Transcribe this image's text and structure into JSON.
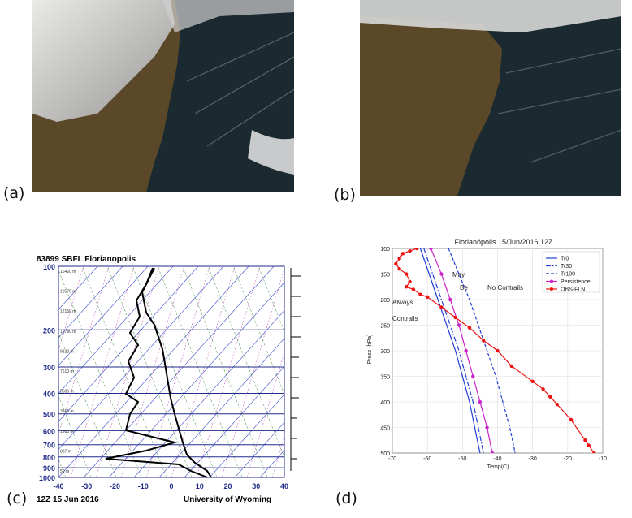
{
  "panel_labels": {
    "a": "(a)",
    "b": "(b)",
    "c": "(c)",
    "d": "(d)"
  },
  "colors": {
    "ocean": "#1d2c33",
    "land": "#5e4a2a",
    "cloud": "#dcdcdc",
    "skewt_isobar": "#1f2a8a",
    "skewt_isotherm": "#3548c8",
    "trh0": "#1f3fd6",
    "tr30": "#1f3fd6",
    "tr100": "#1f3fd6",
    "persistence": "#cc22cc",
    "obs": "#ee1111"
  },
  "sounding": {
    "title": "83899 SBFL Florianopolis",
    "date": "12Z 15 Jun 2016",
    "credit": "University of Wyoming",
    "pressure_labels": [
      "100",
      "200",
      "300",
      "400",
      "500",
      "600",
      "700",
      "800",
      "900",
      "1000"
    ],
    "temp_ticks": [
      "-40",
      "-30",
      "-20",
      "-10",
      "0",
      "10",
      "20",
      "30",
      "40"
    ],
    "height_labels": [
      "16420 m",
      "13570 m",
      "12150 m",
      "10780 m",
      "9130 m",
      "7510 m",
      "5606 m",
      "3165 m",
      "1980 m",
      "837 m",
      "50 m"
    ]
  },
  "chart_data": {
    "type": "line",
    "title": "Florianópolis 15/Jun/2016 12Z",
    "xlabel": "Temp(C)",
    "ylabel": "Press (hPa)",
    "xlim": [
      -70,
      -10
    ],
    "ylim": [
      500,
      100
    ],
    "x_ticks": [
      "-70",
      "-60",
      "-50",
      "-40",
      "-30",
      "-20",
      "-10"
    ],
    "y_ticks": [
      "100",
      "150",
      "200",
      "250",
      "300",
      "350",
      "400",
      "450",
      "500"
    ],
    "grid": true,
    "legend": "top-right",
    "annotations": [
      "May",
      "Be",
      "No Contrails",
      "Always",
      "Contrails"
    ],
    "series": [
      {
        "name": "Tr0",
        "style": "solid",
        "points": [
          [
            -62,
            100
          ],
          [
            -59.5,
            150
          ],
          [
            -57,
            200
          ],
          [
            -54.5,
            250
          ],
          [
            -52,
            300
          ],
          [
            -50,
            350
          ],
          [
            -48,
            400
          ],
          [
            -46.5,
            450
          ],
          [
            -45,
            500
          ]
        ]
      },
      {
        "name": "Tr30",
        "style": "dashdot",
        "points": [
          [
            -61,
            100
          ],
          [
            -58.5,
            150
          ],
          [
            -56,
            200
          ],
          [
            -53.5,
            250
          ],
          [
            -51,
            300
          ],
          [
            -49,
            350
          ],
          [
            -47,
            400
          ],
          [
            -45.5,
            450
          ],
          [
            -44,
            500
          ]
        ]
      },
      {
        "name": "Tr100",
        "style": "dashed",
        "points": [
          [
            -54,
            100
          ],
          [
            -51,
            150
          ],
          [
            -48,
            200
          ],
          [
            -45.5,
            250
          ],
          [
            -43,
            300
          ],
          [
            -40.5,
            350
          ],
          [
            -38.5,
            400
          ],
          [
            -36.5,
            450
          ],
          [
            -35,
            500
          ]
        ]
      },
      {
        "name": "Persistence",
        "style": "solid-marker",
        "points": [
          [
            -59,
            100
          ],
          [
            -56,
            150
          ],
          [
            -53.5,
            200
          ],
          [
            -51,
            250
          ],
          [
            -49,
            300
          ],
          [
            -47,
            350
          ],
          [
            -45,
            400
          ],
          [
            -43,
            450
          ],
          [
            -41.5,
            500
          ]
        ]
      },
      {
        "name": "OBS-FLN",
        "style": "solid-marker",
        "points": [
          [
            -63,
            100
          ],
          [
            -65,
            105
          ],
          [
            -67,
            110
          ],
          [
            -68,
            120
          ],
          [
            -69,
            130
          ],
          [
            -68,
            140
          ],
          [
            -66,
            150
          ],
          [
            -65,
            165
          ],
          [
            -66,
            175
          ],
          [
            -64,
            180
          ],
          [
            -62,
            190
          ],
          [
            -60,
            195
          ],
          [
            -56,
            215
          ],
          [
            -52,
            235
          ],
          [
            -48,
            255
          ],
          [
            -44,
            280
          ],
          [
            -40,
            300
          ],
          [
            -36,
            330
          ],
          [
            -30,
            360
          ],
          [
            -27,
            375
          ],
          [
            -25,
            390
          ],
          [
            -23,
            405
          ],
          [
            -19,
            435
          ],
          [
            -15,
            475
          ],
          [
            -14,
            485
          ],
          [
            -12.5,
            500
          ]
        ]
      }
    ]
  }
}
